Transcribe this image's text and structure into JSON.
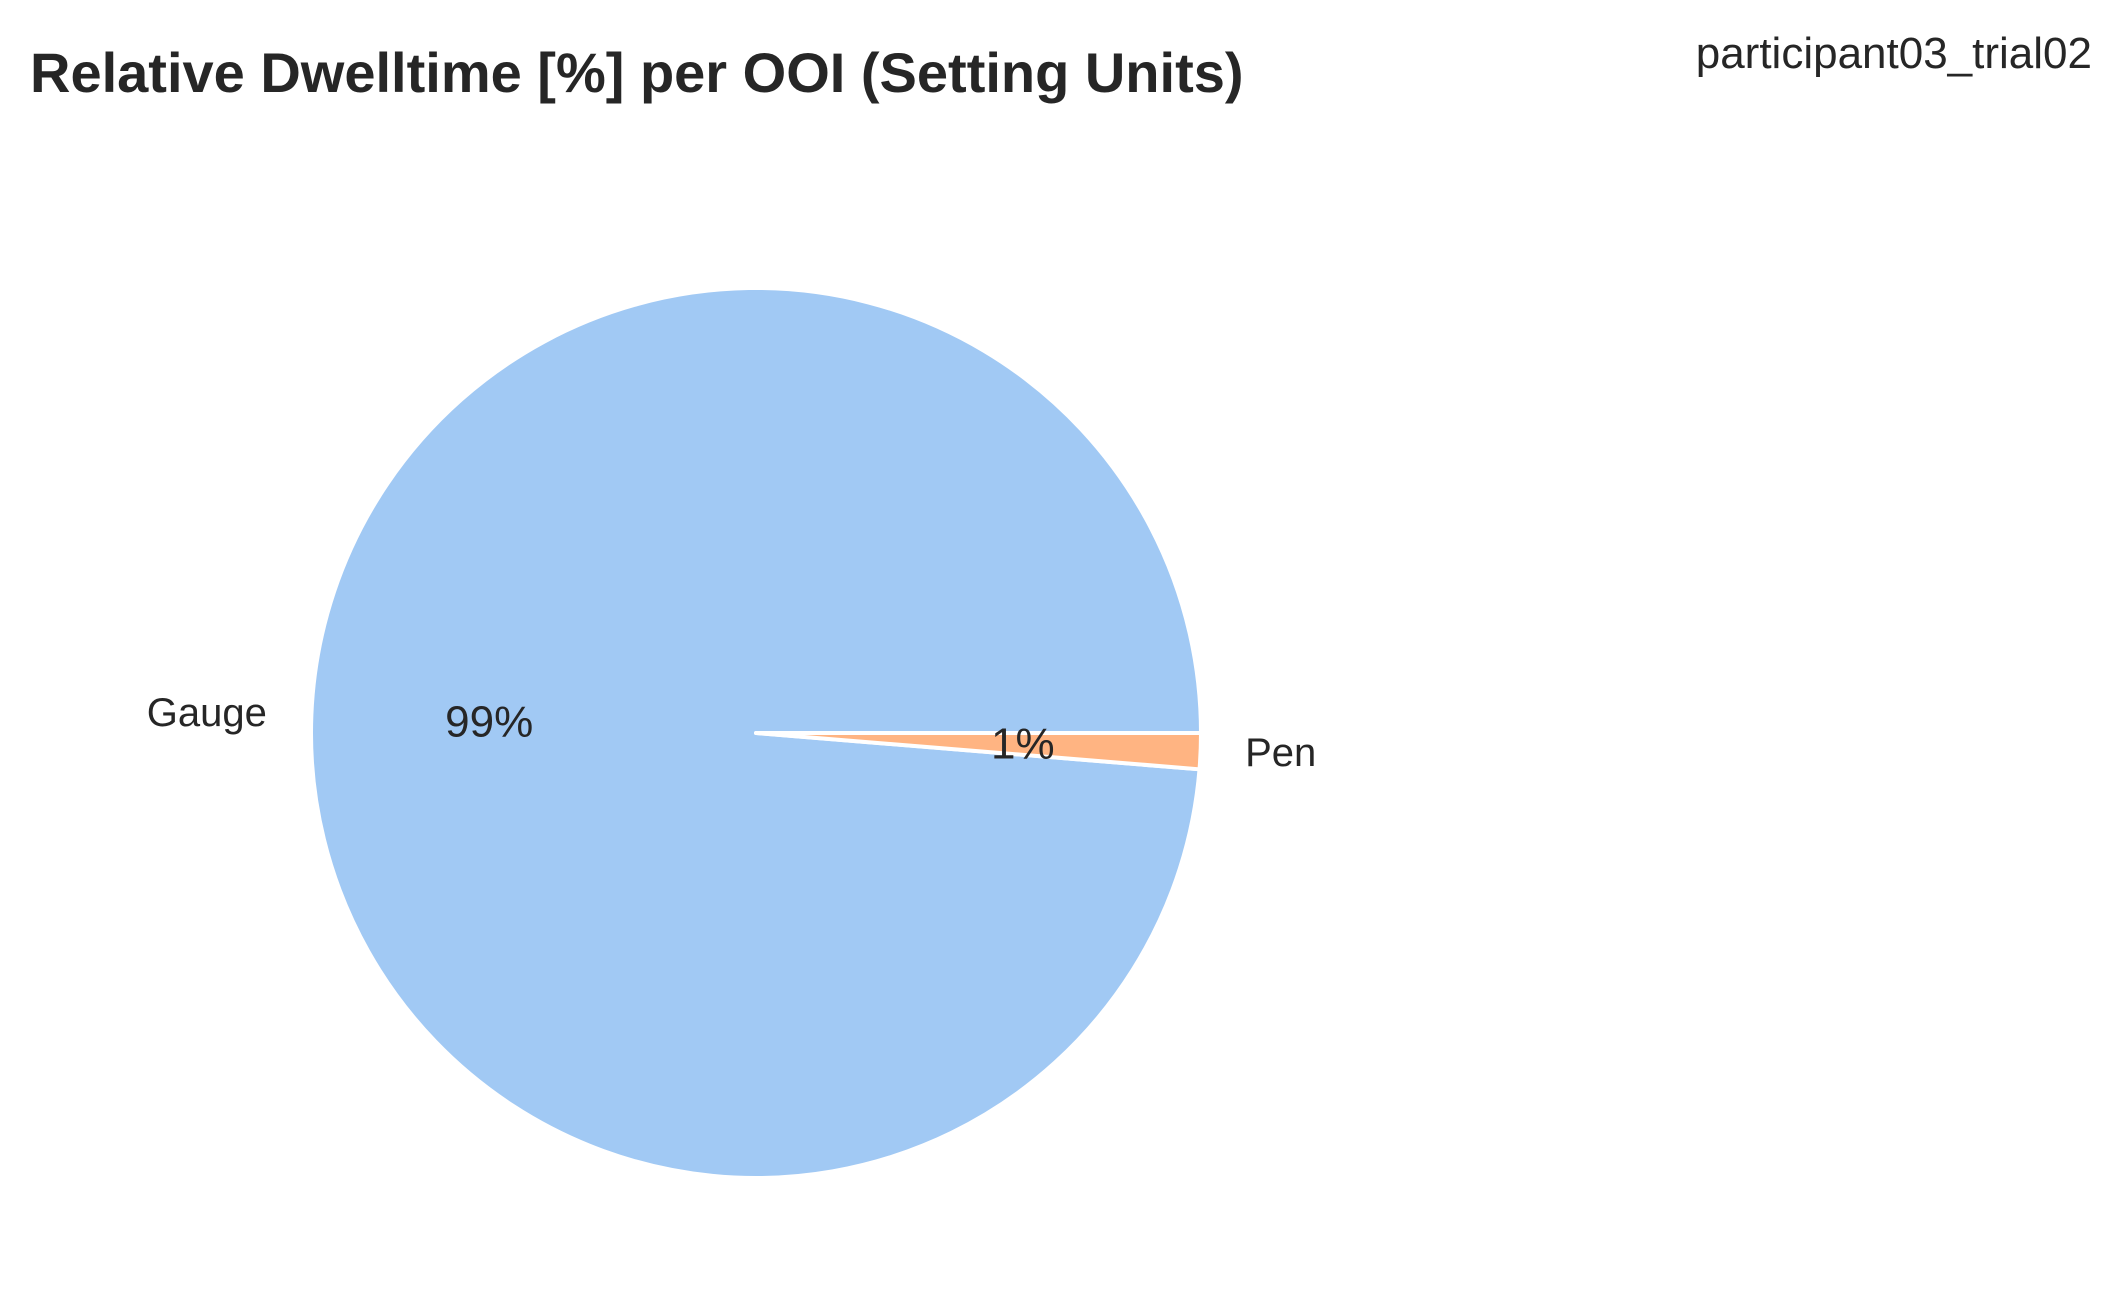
{
  "chart_data": {
    "type": "pie",
    "title": "Relative Dwelltime [%] per OOI (Setting Units)",
    "subtitle": "participant03_trial02",
    "slices": [
      {
        "label": "Gauge",
        "value": 98.7,
        "pct_label": "99%",
        "color": "#a1c9f4"
      },
      {
        "label": "Pen",
        "value": 1.3,
        "pct_label": "1%",
        "color": "#ffb482"
      }
    ],
    "start_angle_deg": 0,
    "direction": "counterclockwise",
    "wedge_edge_color": "#ffffff"
  }
}
